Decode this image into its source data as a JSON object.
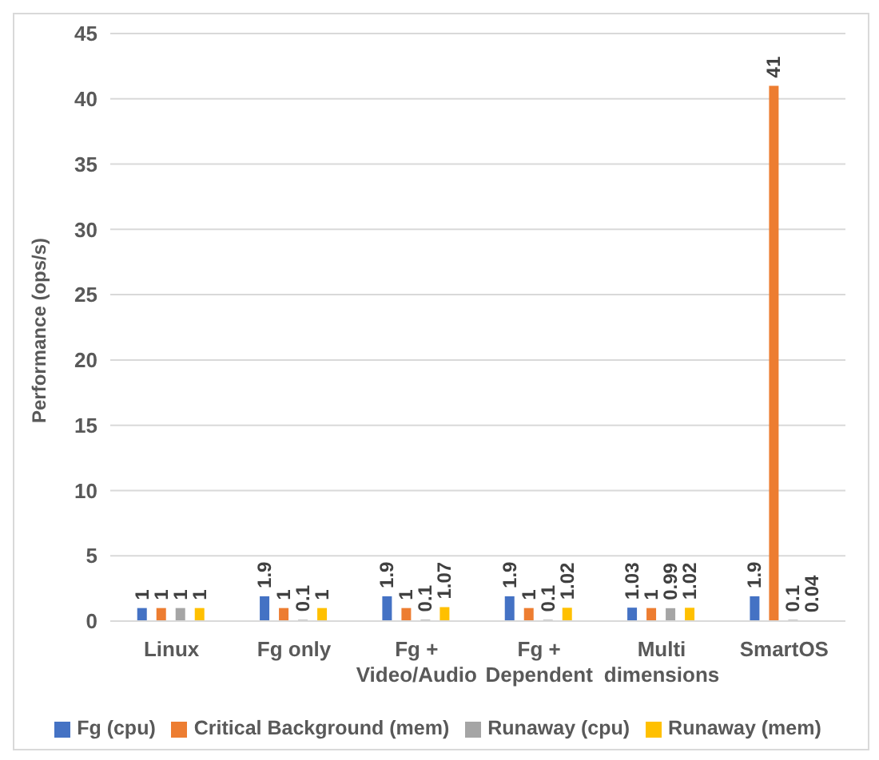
{
  "chart_data": {
    "type": "bar",
    "ylabel": "Performance (ops/s)",
    "categories": [
      "Linux",
      "Fg only",
      "Fg + Video/Audio",
      "Fg + Dependent",
      "Multi dimensions",
      "SmartOS"
    ],
    "series": [
      {
        "name": "Fg (cpu)",
        "color": "#4472c4",
        "values": [
          1,
          1.9,
          1.9,
          1.9,
          1.03,
          1.9
        ]
      },
      {
        "name": "Critical Background (mem)",
        "color": "#ed7d31",
        "values": [
          1,
          1,
          1,
          1,
          1,
          41
        ]
      },
      {
        "name": "Runaway (cpu)",
        "color": "#a5a5a5",
        "values": [
          1,
          0.1,
          0.1,
          0.1,
          0.99,
          0.1
        ]
      },
      {
        "name": "Runaway (mem)",
        "color": "#ffc000",
        "values": [
          1,
          1,
          1.07,
          1.02,
          1.02,
          0.04
        ]
      }
    ],
    "ylim": [
      0,
      45
    ],
    "yticks": [
      0,
      5,
      10,
      15,
      20,
      25,
      30,
      35,
      40,
      45
    ],
    "grid": "y",
    "legend": "bottom",
    "data_labels": true
  }
}
